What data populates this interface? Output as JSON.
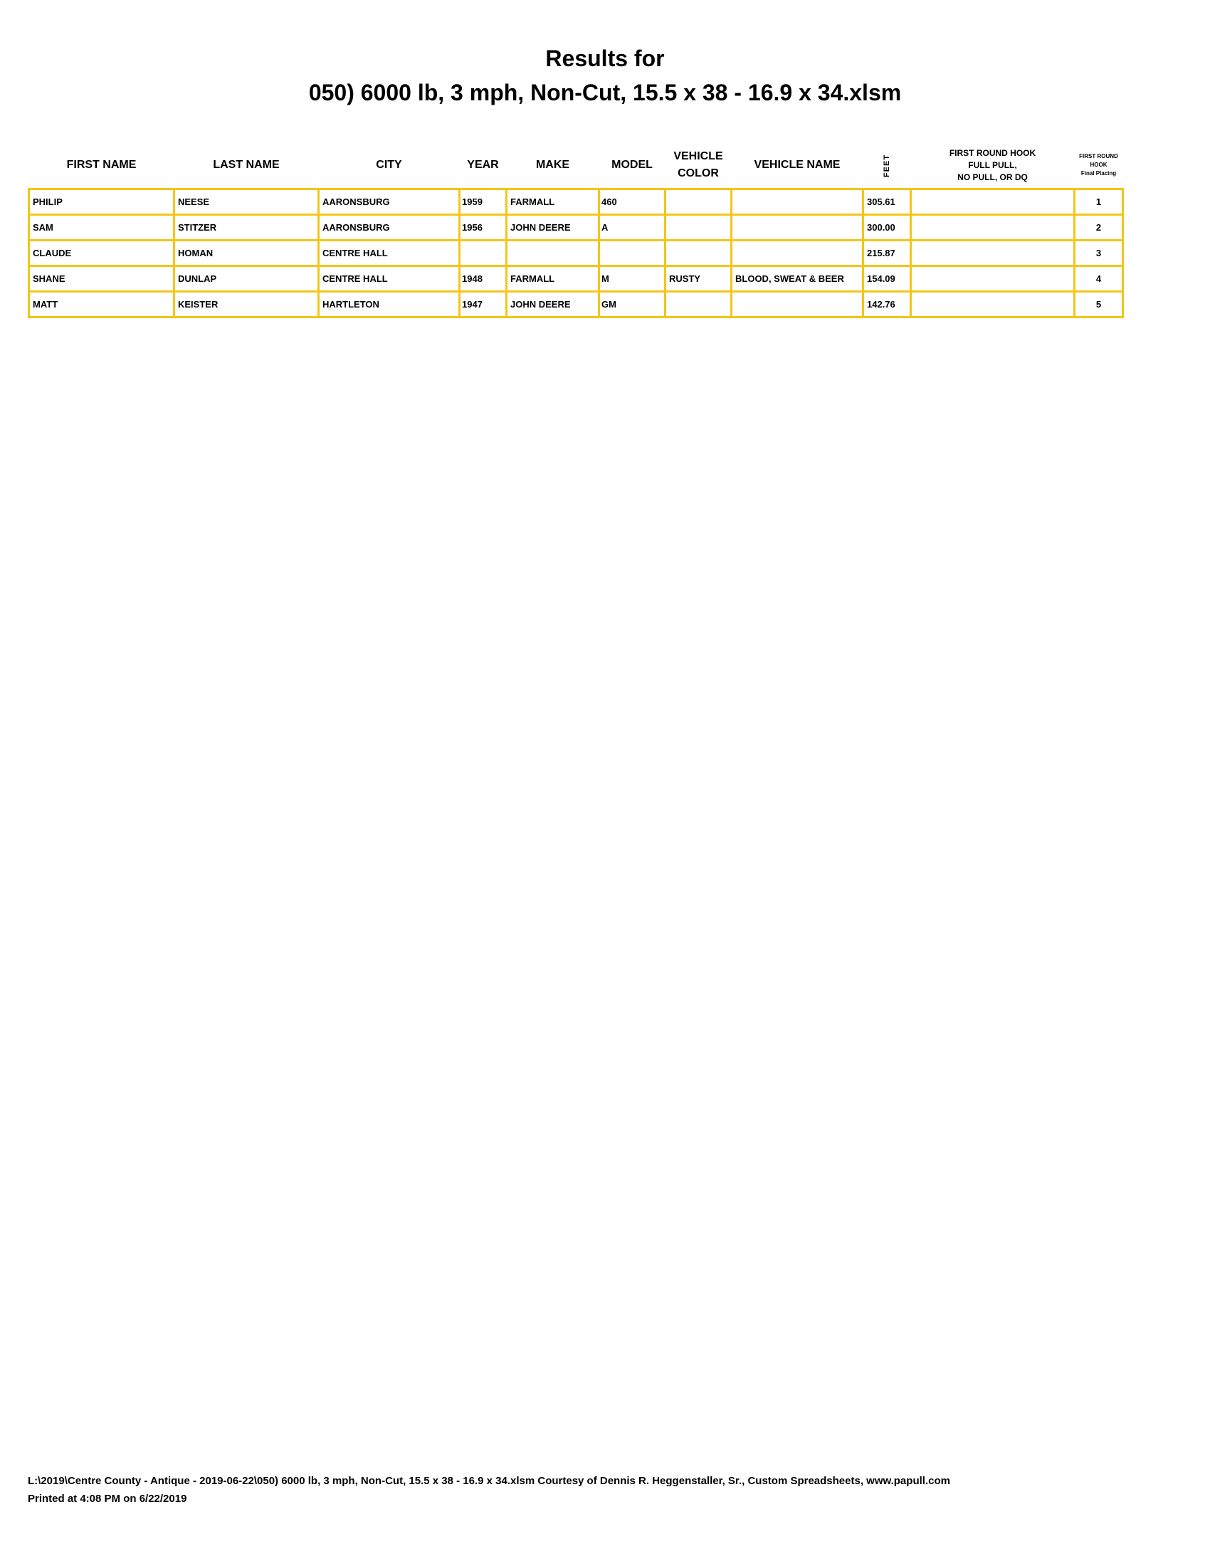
{
  "title_line1": "Results for",
  "title_line2": "050) 6000 lb, 3 mph, Non-Cut, 15.5 x 38 - 16.9 x 34.xlsm",
  "columns": [
    "FIRST NAME",
    "LAST NAME",
    "CITY",
    "YEAR",
    "MAKE",
    "MODEL",
    "VEHICLE COLOR",
    "VEHICLE NAME",
    "FEET",
    "FIRST ROUND HOOK FULL PULL, NO PULL, OR DQ",
    "FIRST ROUND HOOK Final Placing"
  ],
  "header": {
    "vc1": "VEHICLE",
    "vc2": "COLOR",
    "fr1": "FIRST ROUND HOOK",
    "fr2": "FULL PULL,",
    "fr3": "NO PULL, OR DQ",
    "fp1": "FIRST ROUND",
    "fp2": "HOOK",
    "fp3": "Final Placing"
  },
  "rows": [
    [
      "PHILIP",
      "NEESE",
      "AARONSBURG",
      "1959",
      "FARMALL",
      "460",
      "",
      "",
      "305.61",
      "",
      "1"
    ],
    [
      "SAM",
      "STITZER",
      "AARONSBURG",
      "1956",
      "JOHN DEERE",
      "A",
      "",
      "",
      "300.00",
      "",
      "2"
    ],
    [
      "CLAUDE",
      "HOMAN",
      "CENTRE HALL",
      "",
      "",
      "",
      "",
      "",
      "215.87",
      "",
      "3"
    ],
    [
      "SHANE",
      "DUNLAP",
      "CENTRE HALL",
      "1948",
      "FARMALL",
      "M",
      "RUSTY",
      "BLOOD, SWEAT & BEER",
      "154.09",
      "",
      "4"
    ],
    [
      "MATT",
      "KEISTER",
      "HARTLETON",
      "1947",
      "JOHN DEERE",
      "GM",
      "",
      "",
      "142.76",
      "",
      "5"
    ]
  ],
  "footer": {
    "line1": "L:\\2019\\Centre County - Antique - 2019-06-22\\050) 6000 lb, 3 mph, Non-Cut, 15.5 x 38 - 16.9 x 34.xlsm  Courtesy of Dennis R. Heggenstaller, Sr., Custom Spreadsheets, www.papull.com",
    "line2": "Printed at 4:08 PM on 6/22/2019"
  },
  "colors": {
    "grid": "#f5c518"
  }
}
